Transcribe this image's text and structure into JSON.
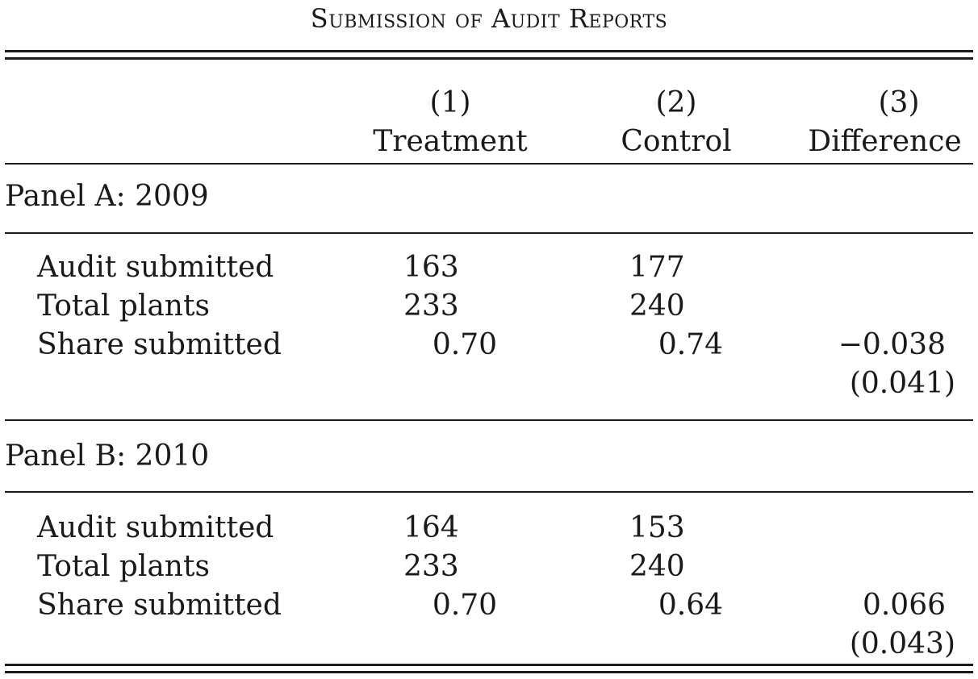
{
  "title": "Submission of Audit Reports",
  "columns": [
    {
      "number": "(1)",
      "label": "Treatment"
    },
    {
      "number": "(2)",
      "label": "Control"
    },
    {
      "number": "(3)",
      "label": "Difference"
    }
  ],
  "panels": [
    {
      "label": "Panel A: 2009",
      "rows": [
        {
          "label": "Audit submitted",
          "treatment": "163",
          "control": "177",
          "difference": ""
        },
        {
          "label": "Total plants",
          "treatment": "233",
          "control": "240",
          "difference": ""
        },
        {
          "label": "Share submitted",
          "treatment": "0.70",
          "control": "0.74",
          "difference": "−0.038"
        }
      ],
      "difference_se": "(0.041)"
    },
    {
      "label": "Panel B: 2010",
      "rows": [
        {
          "label": "Audit submitted",
          "treatment": "164",
          "control": "153",
          "difference": ""
        },
        {
          "label": "Total plants",
          "treatment": "233",
          "control": "240",
          "difference": ""
        },
        {
          "label": "Share submitted",
          "treatment": "0.70",
          "control": "0.64",
          "difference": "0.066"
        }
      ],
      "difference_se": "(0.043)"
    }
  ]
}
